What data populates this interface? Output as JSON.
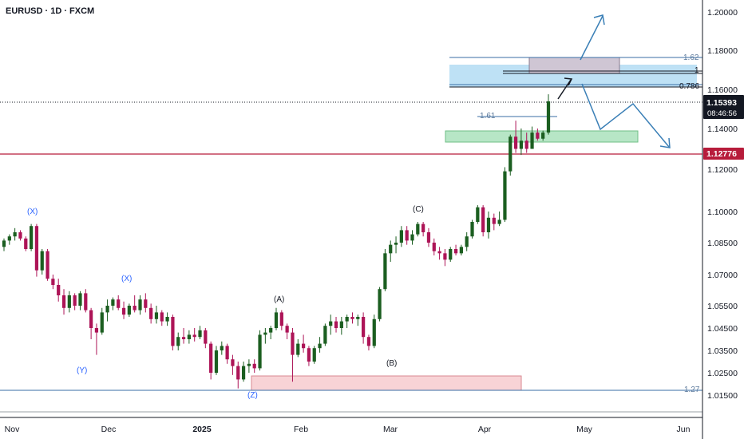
{
  "header": {
    "symbol": "EURUSD · 1D · FXCM"
  },
  "price_badge": {
    "price": "1.15393",
    "countdown": "08:46:56",
    "color": "#131722"
  },
  "level_badge": {
    "price": "1.12776",
    "color": "#b71c3b"
  },
  "colors": {
    "up": "#26a69a",
    "down": "#b7124a",
    "body_up": "#1b5e20",
    "body_down": "#ad1457",
    "projection": "#3a7fb6"
  },
  "chart_data": {
    "type": "candlestick",
    "y_axis": {
      "labels": [
        "1.20000",
        "1.18000",
        "1.16000",
        "1.14000",
        "1.12000",
        "1.10000",
        "1.08500",
        "1.07000",
        "1.05500",
        "1.04500",
        "1.03500",
        "1.02500",
        "1.01500"
      ]
    },
    "x_axis": {
      "labels": [
        "Nov",
        "Dec",
        "2025",
        "Feb",
        "Mar",
        "Apr",
        "May",
        "Jun"
      ]
    },
    "wave_labels": [
      "(X)",
      "(X)",
      "(Y)",
      "(Z)",
      "(A)",
      "(B)",
      "(C)"
    ],
    "fib_labels": [
      "1.62",
      "1",
      "0.786",
      "1.61",
      "1.27"
    ],
    "horizontal_level": 1.12776,
    "last_price": 1.15393,
    "candles": [
      [
        1.083,
        1.087,
        1.081,
        1.086
      ],
      [
        1.086,
        1.089,
        1.084,
        1.088
      ],
      [
        1.088,
        1.092,
        1.086,
        1.09
      ],
      [
        1.09,
        1.091,
        1.086,
        1.087
      ],
      [
        1.087,
        1.088,
        1.081,
        1.082
      ],
      [
        1.082,
        1.094,
        1.081,
        1.093
      ],
      [
        1.093,
        1.094,
        1.069,
        1.072
      ],
      [
        1.072,
        1.082,
        1.07,
        1.081
      ],
      [
        1.081,
        1.082,
        1.067,
        1.068
      ],
      [
        1.068,
        1.07,
        1.063,
        1.065
      ],
      [
        1.065,
        1.068,
        1.057,
        1.06
      ],
      [
        1.06,
        1.063,
        1.051,
        1.054
      ],
      [
        1.054,
        1.062,
        1.052,
        1.06
      ],
      [
        1.06,
        1.061,
        1.053,
        1.055
      ],
      [
        1.055,
        1.062,
        1.053,
        1.061
      ],
      [
        1.061,
        1.063,
        1.052,
        1.053
      ],
      [
        1.053,
        1.054,
        1.04,
        1.045
      ],
      [
        1.045,
        1.047,
        1.033,
        1.043
      ],
      [
        1.043,
        1.054,
        1.042,
        1.052
      ],
      [
        1.052,
        1.058,
        1.048,
        1.055
      ],
      [
        1.055,
        1.059,
        1.053,
        1.058
      ],
      [
        1.058,
        1.06,
        1.053,
        1.054
      ],
      [
        1.054,
        1.057,
        1.049,
        1.051
      ],
      [
        1.051,
        1.056,
        1.05,
        1.055
      ],
      [
        1.055,
        1.06,
        1.052,
        1.053
      ],
      [
        1.053,
        1.06,
        1.051,
        1.058
      ],
      [
        1.058,
        1.061,
        1.052,
        1.054
      ],
      [
        1.054,
        1.056,
        1.047,
        1.049
      ],
      [
        1.049,
        1.055,
        1.047,
        1.052
      ],
      [
        1.052,
        1.053,
        1.046,
        1.048
      ],
      [
        1.048,
        1.052,
        1.046,
        1.05
      ],
      [
        1.05,
        1.051,
        1.035,
        1.037
      ],
      [
        1.037,
        1.043,
        1.035,
        1.041
      ],
      [
        1.041,
        1.045,
        1.038,
        1.04
      ],
      [
        1.04,
        1.044,
        1.038,
        1.042
      ],
      [
        1.042,
        1.045,
        1.039,
        1.041
      ],
      [
        1.041,
        1.046,
        1.04,
        1.044
      ],
      [
        1.044,
        1.045,
        1.036,
        1.038
      ],
      [
        1.038,
        1.039,
        1.022,
        1.025
      ],
      [
        1.025,
        1.037,
        1.024,
        1.035
      ],
      [
        1.035,
        1.039,
        1.033,
        1.037
      ],
      [
        1.037,
        1.038,
        1.029,
        1.031
      ],
      [
        1.031,
        1.033,
        1.024,
        1.028
      ],
      [
        1.028,
        1.03,
        1.018,
        1.022
      ],
      [
        1.022,
        1.03,
        1.021,
        1.028
      ],
      [
        1.028,
        1.031,
        1.025,
        1.029
      ],
      [
        1.029,
        1.031,
        1.025,
        1.027
      ],
      [
        1.027,
        1.044,
        1.026,
        1.042
      ],
      [
        1.042,
        1.045,
        1.038,
        1.043
      ],
      [
        1.043,
        1.046,
        1.04,
        1.045
      ],
      [
        1.045,
        1.054,
        1.044,
        1.052
      ],
      [
        1.052,
        1.053,
        1.044,
        1.046
      ],
      [
        1.046,
        1.047,
        1.04,
        1.043
      ],
      [
        1.043,
        1.045,
        1.021,
        1.033
      ],
      [
        1.033,
        1.04,
        1.032,
        1.038
      ],
      [
        1.038,
        1.042,
        1.034,
        1.036
      ],
      [
        1.036,
        1.037,
        1.028,
        1.03
      ],
      [
        1.03,
        1.037,
        1.029,
        1.036
      ],
      [
        1.036,
        1.041,
        1.034,
        1.038
      ],
      [
        1.038,
        1.047,
        1.037,
        1.046
      ],
      [
        1.046,
        1.051,
        1.042,
        1.048
      ],
      [
        1.048,
        1.05,
        1.043,
        1.045
      ],
      [
        1.045,
        1.05,
        1.042,
        1.048
      ],
      [
        1.048,
        1.051,
        1.045,
        1.05
      ],
      [
        1.05,
        1.052,
        1.047,
        1.049
      ],
      [
        1.049,
        1.051,
        1.046,
        1.05
      ],
      [
        1.05,
        1.052,
        1.038,
        1.041
      ],
      [
        1.041,
        1.042,
        1.035,
        1.037
      ],
      [
        1.037,
        1.051,
        1.036,
        1.049
      ],
      [
        1.049,
        1.064,
        1.048,
        1.063
      ],
      [
        1.063,
        1.082,
        1.062,
        1.08
      ],
      [
        1.08,
        1.086,
        1.076,
        1.084
      ],
      [
        1.084,
        1.088,
        1.08,
        1.085
      ],
      [
        1.085,
        1.093,
        1.083,
        1.091
      ],
      [
        1.091,
        1.093,
        1.084,
        1.086
      ],
      [
        1.086,
        1.091,
        1.084,
        1.089
      ],
      [
        1.089,
        1.095,
        1.088,
        1.094
      ],
      [
        1.094,
        1.095,
        1.088,
        1.09
      ],
      [
        1.09,
        1.092,
        1.083,
        1.085
      ],
      [
        1.085,
        1.087,
        1.079,
        1.081
      ],
      [
        1.081,
        1.083,
        1.077,
        1.08
      ],
      [
        1.08,
        1.082,
        1.074,
        1.077
      ],
      [
        1.077,
        1.083,
        1.076,
        1.082
      ],
      [
        1.082,
        1.084,
        1.079,
        1.08
      ],
      [
        1.08,
        1.084,
        1.079,
        1.083
      ],
      [
        1.083,
        1.09,
        1.081,
        1.088
      ],
      [
        1.088,
        1.096,
        1.087,
        1.095
      ],
      [
        1.095,
        1.103,
        1.094,
        1.102
      ],
      [
        1.102,
        1.103,
        1.088,
        1.09
      ],
      [
        1.09,
        1.1,
        1.087,
        1.097
      ],
      [
        1.097,
        1.099,
        1.091,
        1.094
      ],
      [
        1.094,
        1.1,
        1.093,
        1.096
      ],
      [
        1.096,
        1.121,
        1.095,
        1.119
      ],
      [
        1.119,
        1.137,
        1.117,
        1.136
      ],
      [
        1.136,
        1.144,
        1.128,
        1.13
      ],
      [
        1.13,
        1.14,
        1.127,
        1.134
      ],
      [
        1.134,
        1.138,
        1.128,
        1.13
      ],
      [
        1.13,
        1.141,
        1.13,
        1.138
      ],
      [
        1.138,
        1.14,
        1.134,
        1.135
      ],
      [
        1.135,
        1.139,
        1.134,
        1.138
      ],
      [
        1.138,
        1.1575,
        1.137,
        1.1539
      ]
    ]
  }
}
